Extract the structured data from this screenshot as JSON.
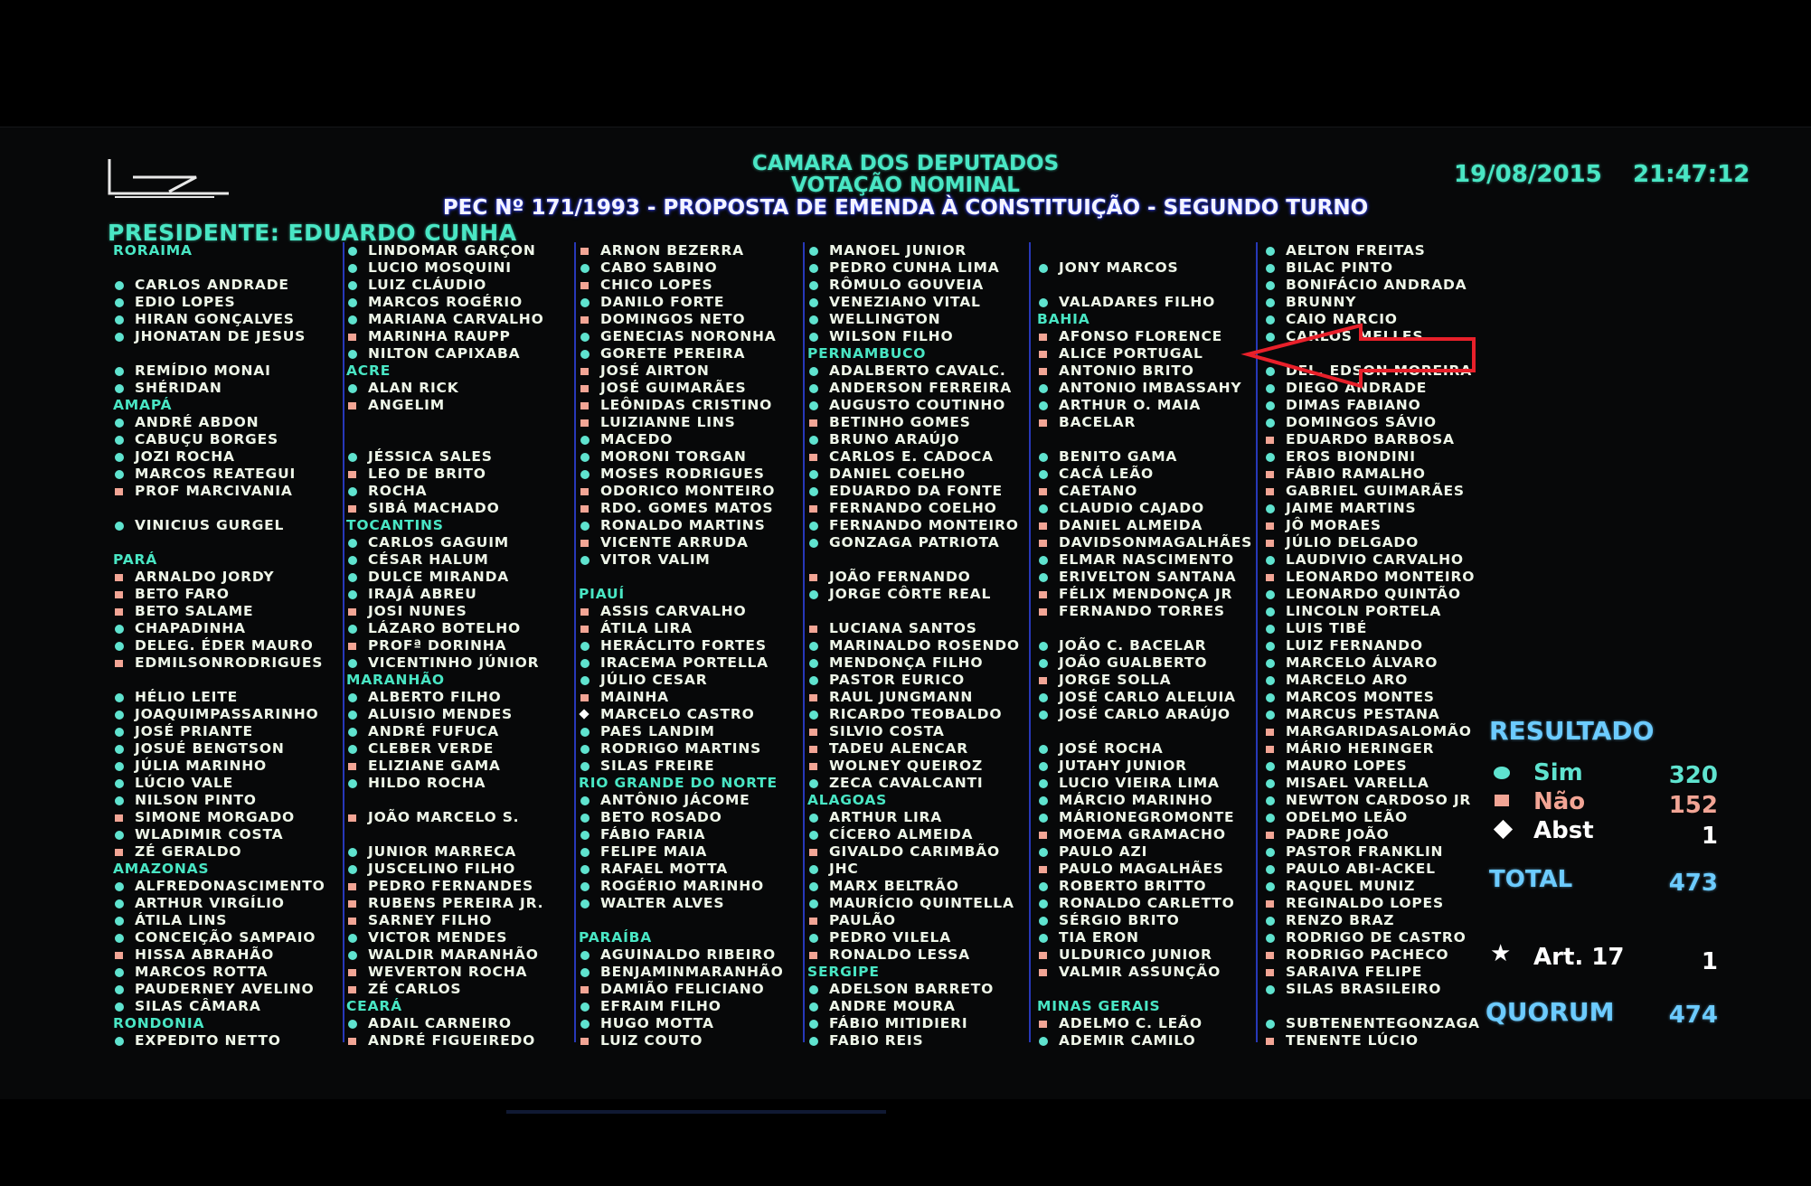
{
  "header": {
    "title": "CAMARA DOS DEPUTADOS",
    "subtitle": "VOTAÇÃO NOMINAL",
    "matter": "PEC  Nº 171/1993 - PROPOSTA DE EMENDA À CONSTITUIÇÃO - SEGUNDO TURNO",
    "date": "19/08/2015",
    "time": "21:47:12",
    "president": "PRESIDENTE: EDUARDO CUNHA"
  },
  "colors": {
    "sim": "#5fe3cf",
    "nao": "#f2a595",
    "heading": "#49e6c4",
    "result": "#6ccbff",
    "annotation_arrow": "#e8202a"
  },
  "columns": [
    [
      [
        "h",
        "RORAIMA"
      ],
      [
        ""
      ],
      [
        "s",
        "CARLOS ANDRADE"
      ],
      [
        "s",
        "EDIO LOPES"
      ],
      [
        "s",
        "HIRAN GONÇALVES"
      ],
      [
        "s",
        "JHONATAN DE JESUS"
      ],
      [
        ""
      ],
      [
        "s",
        "REMÍDIO MONAI"
      ],
      [
        "s",
        "SHÉRIDAN"
      ],
      [
        "h",
        "AMAPÁ"
      ],
      [
        "s",
        "ANDRÉ ABDON"
      ],
      [
        "s",
        "CABUÇU BORGES"
      ],
      [
        "s",
        "JOZI ROCHA"
      ],
      [
        "s",
        "MARCOS REATEGUI"
      ],
      [
        "n",
        "PROF MARCIVANIA"
      ],
      [
        ""
      ],
      [
        "s",
        "VINICIUS GURGEL"
      ],
      [
        ""
      ],
      [
        "h",
        "PARÁ"
      ],
      [
        "n",
        "ARNALDO JORDY"
      ],
      [
        "n",
        "BETO FARO"
      ],
      [
        "n",
        "BETO SALAME"
      ],
      [
        "s",
        "CHAPADINHA"
      ],
      [
        "s",
        "DELEG. ÉDER MAURO"
      ],
      [
        "n",
        "EDMILSONRODRIGUES"
      ],
      [
        ""
      ],
      [
        "s",
        "HÉLIO LEITE"
      ],
      [
        "s",
        "JOAQUIMPASSARINHO"
      ],
      [
        "s",
        "JOSÉ PRIANTE"
      ],
      [
        "s",
        "JOSUÉ BENGTSON"
      ],
      [
        "s",
        "JÚLIA MARINHO"
      ],
      [
        "s",
        "LÚCIO VALE"
      ],
      [
        "s",
        "NILSON PINTO"
      ],
      [
        "n",
        "SIMONE MORGADO"
      ],
      [
        "s",
        "WLADIMIR COSTA"
      ],
      [
        "n",
        "ZÉ GERALDO"
      ],
      [
        "h",
        "AMAZONAS"
      ],
      [
        "s",
        "ALFREDONASCIMENTO"
      ],
      [
        "s",
        "ARTHUR VIRGÍLIO"
      ],
      [
        "s",
        "ÁTILA LINS"
      ],
      [
        "s",
        "CONCEIÇÃO SAMPAIO"
      ],
      [
        "n",
        "HISSA ABRAHÃO"
      ],
      [
        "s",
        "MARCOS ROTTA"
      ],
      [
        "s",
        "PAUDERNEY AVELINO"
      ],
      [
        "s",
        "SILAS CÂMARA"
      ],
      [
        "h",
        "RONDONIA"
      ],
      [
        "s",
        "EXPEDITO NETTO"
      ]
    ],
    [
      [
        "s",
        "LINDOMAR GARÇON"
      ],
      [
        "s",
        "LUCIO MOSQUINI"
      ],
      [
        "s",
        "LUIZ CLÁUDIO"
      ],
      [
        "s",
        "MARCOS ROGÉRIO"
      ],
      [
        "s",
        "MARIANA CARVALHO"
      ],
      [
        "n",
        "MARINHA RAUPP"
      ],
      [
        "s",
        "NILTON CAPIXABA"
      ],
      [
        "h",
        "ACRE"
      ],
      [
        "s",
        "ALAN RICK"
      ],
      [
        "n",
        "ANGELIM"
      ],
      [
        ""
      ],
      [
        ""
      ],
      [
        "s",
        "JÉSSICA SALES"
      ],
      [
        "n",
        "LEO DE BRITO"
      ],
      [
        "s",
        "ROCHA"
      ],
      [
        "n",
        "SIBÁ MACHADO"
      ],
      [
        "h",
        "TOCANTINS"
      ],
      [
        "s",
        "CARLOS GAGUIM"
      ],
      [
        "s",
        "CÉSAR HALUM"
      ],
      [
        "s",
        "DULCE MIRANDA"
      ],
      [
        "s",
        "IRAJÁ ABREU"
      ],
      [
        "n",
        "JOSI NUNES"
      ],
      [
        "s",
        "LÁZARO BOTELHO"
      ],
      [
        "n",
        "PROFª DORINHA"
      ],
      [
        "s",
        "VICENTINHO JÚNIOR"
      ],
      [
        "h",
        "MARANHÃO"
      ],
      [
        "s",
        "ALBERTO FILHO"
      ],
      [
        "s",
        "ALUISIO MENDES"
      ],
      [
        "s",
        "ANDRÉ FUFUCA"
      ],
      [
        "s",
        "CLEBER VERDE"
      ],
      [
        "n",
        "ELIZIANE GAMA"
      ],
      [
        "s",
        "HILDO ROCHA"
      ],
      [
        ""
      ],
      [
        "n",
        "JOÃO MARCELO S."
      ],
      [
        ""
      ],
      [
        "s",
        "JUNIOR MARRECA"
      ],
      [
        "s",
        "JUSCELINO FILHO"
      ],
      [
        "n",
        "PEDRO FERNANDES"
      ],
      [
        "n",
        "RUBENS PEREIRA JR."
      ],
      [
        "n",
        "SARNEY FILHO"
      ],
      [
        "s",
        "VICTOR MENDES"
      ],
      [
        "s",
        "WALDIR MARANHÃO"
      ],
      [
        "n",
        "WEVERTON ROCHA"
      ],
      [
        "n",
        "ZÉ CARLOS"
      ],
      [
        "h",
        "CEARÁ"
      ],
      [
        "s",
        "ADAIL CARNEIRO"
      ],
      [
        "n",
        "ANDRÉ FIGUEIREDO"
      ]
    ],
    [
      [
        "n",
        "ARNON BEZERRA"
      ],
      [
        "s",
        "CABO SABINO"
      ],
      [
        "n",
        "CHICO LOPES"
      ],
      [
        "s",
        "DANILO FORTE"
      ],
      [
        "n",
        "DOMINGOS NETO"
      ],
      [
        "s",
        "GENECIAS NORONHA"
      ],
      [
        "s",
        "GORETE PEREIRA"
      ],
      [
        "n",
        "JOSÉ AIRTON"
      ],
      [
        "n",
        "JOSÉ GUIMARÃES"
      ],
      [
        "n",
        "LEÔNIDAS CRISTINO"
      ],
      [
        "n",
        "LUIZIANNE LINS"
      ],
      [
        "s",
        "MACEDO"
      ],
      [
        "s",
        "MORONI TORGAN"
      ],
      [
        "s",
        "MOSES RODRIGUES"
      ],
      [
        "n",
        "ODORICO MONTEIRO"
      ],
      [
        "n",
        "RDO. GOMES MATOS"
      ],
      [
        "s",
        "RONALDO MARTINS"
      ],
      [
        "n",
        "VICENTE ARRUDA"
      ],
      [
        "s",
        "VITOR VALIM"
      ],
      [
        ""
      ],
      [
        "h",
        "PIAUÍ"
      ],
      [
        "n",
        "ASSIS CARVALHO"
      ],
      [
        "n",
        "ÁTILA LIRA"
      ],
      [
        "s",
        "HERÁCLITO FORTES"
      ],
      [
        "s",
        "IRACEMA PORTELLA"
      ],
      [
        "s",
        "JÚLIO CESAR"
      ],
      [
        "n",
        "MAINHA"
      ],
      [
        "a",
        "MARCELO CASTRO"
      ],
      [
        "s",
        "PAES LANDIM"
      ],
      [
        "s",
        "RODRIGO MARTINS"
      ],
      [
        "s",
        "SILAS FREIRE"
      ],
      [
        "h",
        "RIO GRANDE DO NORTE"
      ],
      [
        "s",
        "ANTÔNIO JÁCOME"
      ],
      [
        "s",
        "BETO ROSADO"
      ],
      [
        "s",
        "FÁBIO FARIA"
      ],
      [
        "s",
        "FELIPE MAIA"
      ],
      [
        "s",
        "RAFAEL MOTTA"
      ],
      [
        "s",
        "ROGÉRIO MARINHO"
      ],
      [
        "s",
        "WALTER ALVES"
      ],
      [
        ""
      ],
      [
        "h",
        "PARAÍBA"
      ],
      [
        "s",
        "AGUINALDO RIBEIRO"
      ],
      [
        "s",
        "BENJAMINMARANHÃO"
      ],
      [
        "n",
        "DAMIÃO FELICIANO"
      ],
      [
        "s",
        "EFRAIM FILHO"
      ],
      [
        "s",
        "HUGO MOTTA"
      ],
      [
        "n",
        "LUIZ COUTO"
      ]
    ],
    [
      [
        "s",
        "MANOEL JUNIOR"
      ],
      [
        "s",
        "PEDRO CUNHA LIMA"
      ],
      [
        "s",
        "RÔMULO GOUVEIA"
      ],
      [
        "s",
        "VENEZIANO VITAL"
      ],
      [
        "s",
        "WELLINGTON"
      ],
      [
        "s",
        "WILSON FILHO"
      ],
      [
        "h",
        "PERNAMBUCO"
      ],
      [
        "s",
        "ADALBERTO CAVALC."
      ],
      [
        "s",
        "ANDERSON FERREIRA"
      ],
      [
        "s",
        "AUGUSTO COUTINHO"
      ],
      [
        "n",
        "BETINHO GOMES"
      ],
      [
        "s",
        "BRUNO ARAÚJO"
      ],
      [
        "n",
        "CARLOS E. CADOCA"
      ],
      [
        "s",
        "DANIEL COELHO"
      ],
      [
        "s",
        "EDUARDO DA FONTE"
      ],
      [
        "n",
        "FERNANDO COELHO"
      ],
      [
        "s",
        "FERNANDO MONTEIRO"
      ],
      [
        "s",
        "GONZAGA PATRIOTA"
      ],
      [
        ""
      ],
      [
        "n",
        "JOÃO FERNANDO"
      ],
      [
        "s",
        "JORGE CÔRTE REAL"
      ],
      [
        ""
      ],
      [
        "n",
        "LUCIANA SANTOS"
      ],
      [
        "s",
        "MARINALDO ROSENDO"
      ],
      [
        "s",
        "MENDONÇA FILHO"
      ],
      [
        "s",
        "PASTOR EURICO"
      ],
      [
        "n",
        "RAUL JUNGMANN"
      ],
      [
        "s",
        "RICARDO TEOBALDO"
      ],
      [
        "n",
        "SILVIO COSTA"
      ],
      [
        "n",
        "TADEU ALENCAR"
      ],
      [
        "n",
        "WOLNEY QUEIROZ"
      ],
      [
        "s",
        "ZECA CAVALCANTI"
      ],
      [
        "h",
        "ALAGOAS"
      ],
      [
        "s",
        "ARTHUR LIRA"
      ],
      [
        "s",
        "CÍCERO ALMEIDA"
      ],
      [
        "n",
        "GIVALDO CARIMBÃO"
      ],
      [
        "s",
        "JHC"
      ],
      [
        "s",
        "MARX BELTRÃO"
      ],
      [
        "s",
        "MAURÍCIO QUINTELLA"
      ],
      [
        "n",
        "PAULÃO"
      ],
      [
        "s",
        "PEDRO VILELA"
      ],
      [
        "n",
        "RONALDO LESSA"
      ],
      [
        "h",
        "SERGIPE"
      ],
      [
        "s",
        "ADELSON BARRETO"
      ],
      [
        "s",
        "ANDRE MOURA"
      ],
      [
        "s",
        "FÁBIO MITIDIERI"
      ],
      [
        "s",
        "FABIO REIS"
      ]
    ],
    [
      [
        ""
      ],
      [
        "s",
        "JONY MARCOS"
      ],
      [
        ""
      ],
      [
        "s",
        "VALADARES FILHO"
      ],
      [
        "h",
        "BAHIA"
      ],
      [
        "n",
        "AFONSO FLORENCE"
      ],
      [
        "n",
        "ALICE PORTUGAL"
      ],
      [
        "n",
        "ANTONIO BRITO"
      ],
      [
        "s",
        "ANTONIO IMBASSAHY"
      ],
      [
        "s",
        "ARTHUR O. MAIA"
      ],
      [
        "n",
        "BACELAR"
      ],
      [
        ""
      ],
      [
        "s",
        "BENITO GAMA"
      ],
      [
        "s",
        "CACÁ LEÃO"
      ],
      [
        "n",
        "CAETANO"
      ],
      [
        "s",
        "CLAUDIO CAJADO"
      ],
      [
        "n",
        "DANIEL ALMEIDA"
      ],
      [
        "n",
        "DAVIDSONMAGALHÃES"
      ],
      [
        "s",
        "ELMAR NASCIMENTO"
      ],
      [
        "s",
        "ERIVELTON SANTANA"
      ],
      [
        "n",
        "FÉLIX MENDONÇA JR"
      ],
      [
        "n",
        "FERNANDO TORRES"
      ],
      [
        ""
      ],
      [
        "s",
        "JOÃO C. BACELAR"
      ],
      [
        "s",
        "JOÃO GUALBERTO"
      ],
      [
        "n",
        "JORGE SOLLA"
      ],
      [
        "s",
        "JOSÉ CARLO ALELUIA"
      ],
      [
        "s",
        "JOSÉ CARLO ARAÚJO"
      ],
      [
        ""
      ],
      [
        "s",
        "JOSÉ ROCHA"
      ],
      [
        "s",
        "JUTAHY JUNIOR"
      ],
      [
        "s",
        "LUCIO VIEIRA LIMA"
      ],
      [
        "s",
        "MÁRCIO MARINHO"
      ],
      [
        "s",
        "MÁRIONEGROMONTE"
      ],
      [
        "n",
        "MOEMA GRAMACHO"
      ],
      [
        "s",
        "PAULO AZI"
      ],
      [
        "n",
        "PAULO MAGALHÃES"
      ],
      [
        "s",
        "ROBERTO BRITTO"
      ],
      [
        "s",
        "RONALDO CARLETTO"
      ],
      [
        "s",
        "SÉRGIO BRITO"
      ],
      [
        "s",
        "TIA ERON"
      ],
      [
        "n",
        "ULDURICO JUNIOR"
      ],
      [
        "n",
        "VALMIR ASSUNÇÃO"
      ],
      [
        ""
      ],
      [
        "h",
        "MINAS GERAIS"
      ],
      [
        "n",
        "ADELMO C. LEÃO"
      ],
      [
        "s",
        "ADEMIR CAMILO"
      ]
    ],
    [
      [
        "s",
        "AELTON FREITAS"
      ],
      [
        "s",
        "BILAC PINTO"
      ],
      [
        "s",
        "BONIFÁCIO ANDRADA"
      ],
      [
        "s",
        "BRUNNY"
      ],
      [
        "s",
        "CAIO NARCIO"
      ],
      [
        "s",
        "CARLOS MELLES"
      ],
      [
        ""
      ],
      [
        "s",
        "DEL. EDSON MOREIRA"
      ],
      [
        "s",
        "DIEGO ANDRADE"
      ],
      [
        "s",
        "DIMAS FABIANO"
      ],
      [
        "s",
        "DOMINGOS SÁVIO"
      ],
      [
        "n",
        "EDUARDO BARBOSA"
      ],
      [
        "s",
        "EROS BIONDINI"
      ],
      [
        "n",
        "FÁBIO RAMALHO"
      ],
      [
        "n",
        "GABRIEL GUIMARÃES"
      ],
      [
        "s",
        "JAIME MARTINS"
      ],
      [
        "n",
        "JÔ MORAES"
      ],
      [
        "n",
        "JÚLIO DELGADO"
      ],
      [
        "s",
        "LAUDIVIO CARVALHO"
      ],
      [
        "n",
        "LEONARDO MONTEIRO"
      ],
      [
        "s",
        "LEONARDO QUINTÃO"
      ],
      [
        "s",
        "LINCOLN PORTELA"
      ],
      [
        "s",
        "LUIS TIBÉ"
      ],
      [
        "s",
        "LUIZ FERNANDO"
      ],
      [
        "s",
        "MARCELO ÁLVARO"
      ],
      [
        "s",
        "MARCELO ARO"
      ],
      [
        "s",
        "MARCOS MONTES"
      ],
      [
        "s",
        "MARCUS PESTANA"
      ],
      [
        "n",
        "MARGARIDASALOMÃO"
      ],
      [
        "n",
        "MÁRIO HERINGER"
      ],
      [
        "s",
        "MAURO LOPES"
      ],
      [
        "s",
        "MISAEL VARELLA"
      ],
      [
        "s",
        "NEWTON CARDOSO JR"
      ],
      [
        "s",
        "ODELMO LEÃO"
      ],
      [
        "n",
        "PADRE JOÃO"
      ],
      [
        "s",
        "PASTOR FRANKLIN"
      ],
      [
        "s",
        "PAULO ABI-ACKEL"
      ],
      [
        "s",
        "RAQUEL MUNIZ"
      ],
      [
        "n",
        "REGINALDO LOPES"
      ],
      [
        "s",
        "RENZO BRAZ"
      ],
      [
        "s",
        "RODRIGO DE CASTRO"
      ],
      [
        "n",
        "RODRIGO PACHECO"
      ],
      [
        "n",
        "SARAIVA FELIPE"
      ],
      [
        "s",
        "SILAS BRASILEIRO"
      ],
      [
        ""
      ],
      [
        "s",
        "SUBTENENTEGONZAGA"
      ],
      [
        "n",
        "TENENTE LÚCIO"
      ]
    ]
  ],
  "result": {
    "title": "RESULTADO",
    "sim_label": "Sim",
    "sim": "320",
    "nao_label": "Não",
    "nao": "152",
    "abst_label": "Abst",
    "abst": "1",
    "total_label": "TOTAL",
    "total": "473",
    "art17_label": "Art. 17",
    "art17": "1",
    "quorum_label": "QUORUM",
    "quorum": "474"
  }
}
